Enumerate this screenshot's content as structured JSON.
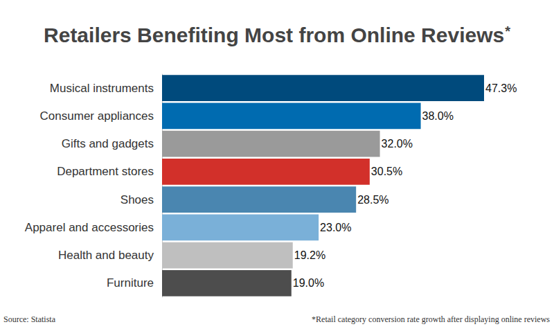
{
  "chart_data": {
    "type": "bar",
    "orientation": "horizontal",
    "title": "Retailers Benefiting Most from Online Reviews*",
    "categories": [
      "Musical instruments",
      "Consumer appliances",
      "Gifts and gadgets",
      "Department stores",
      "Shoes",
      "Apparel and accessories",
      "Health and beauty",
      "Furniture"
    ],
    "values": [
      47.3,
      38.0,
      32.0,
      30.5,
      28.5,
      23.0,
      19.2,
      19.0
    ],
    "value_labels": [
      "47.3%",
      "38.0%",
      "32.0%",
      "30.5%",
      "28.5%",
      "23.0%",
      "19.2%",
      "19.0%"
    ],
    "colors": [
      "#004a7c",
      "#006bb0",
      "#9a9a9a",
      "#d2302a",
      "#4a86b0",
      "#7ab0d8",
      "#bfbfbf",
      "#4d4d4d"
    ],
    "data_labels": true,
    "tick_labels": "y",
    "grid": false,
    "annotations": [
      "Source: Statista",
      "*Retail category conversion rate growth after displaying online reviews"
    ]
  }
}
